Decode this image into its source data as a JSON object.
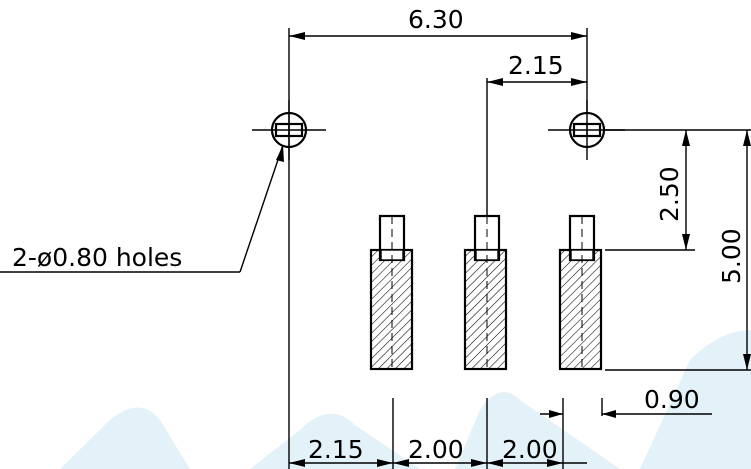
{
  "dimensions": {
    "overall_width": "6.30",
    "hole_to_pin": "2.15",
    "pin_row_height": "2.50",
    "overall_height": "5.00",
    "pad_width": "0.90",
    "edge_to_pin": "2.15",
    "pin_pitch_1": "2.00",
    "pin_pitch_2": "2.00"
  },
  "notes": {
    "holes": "2-ø0.80 holes"
  },
  "colors": {
    "line": "#000000",
    "watermark": "#e3f1f8"
  }
}
